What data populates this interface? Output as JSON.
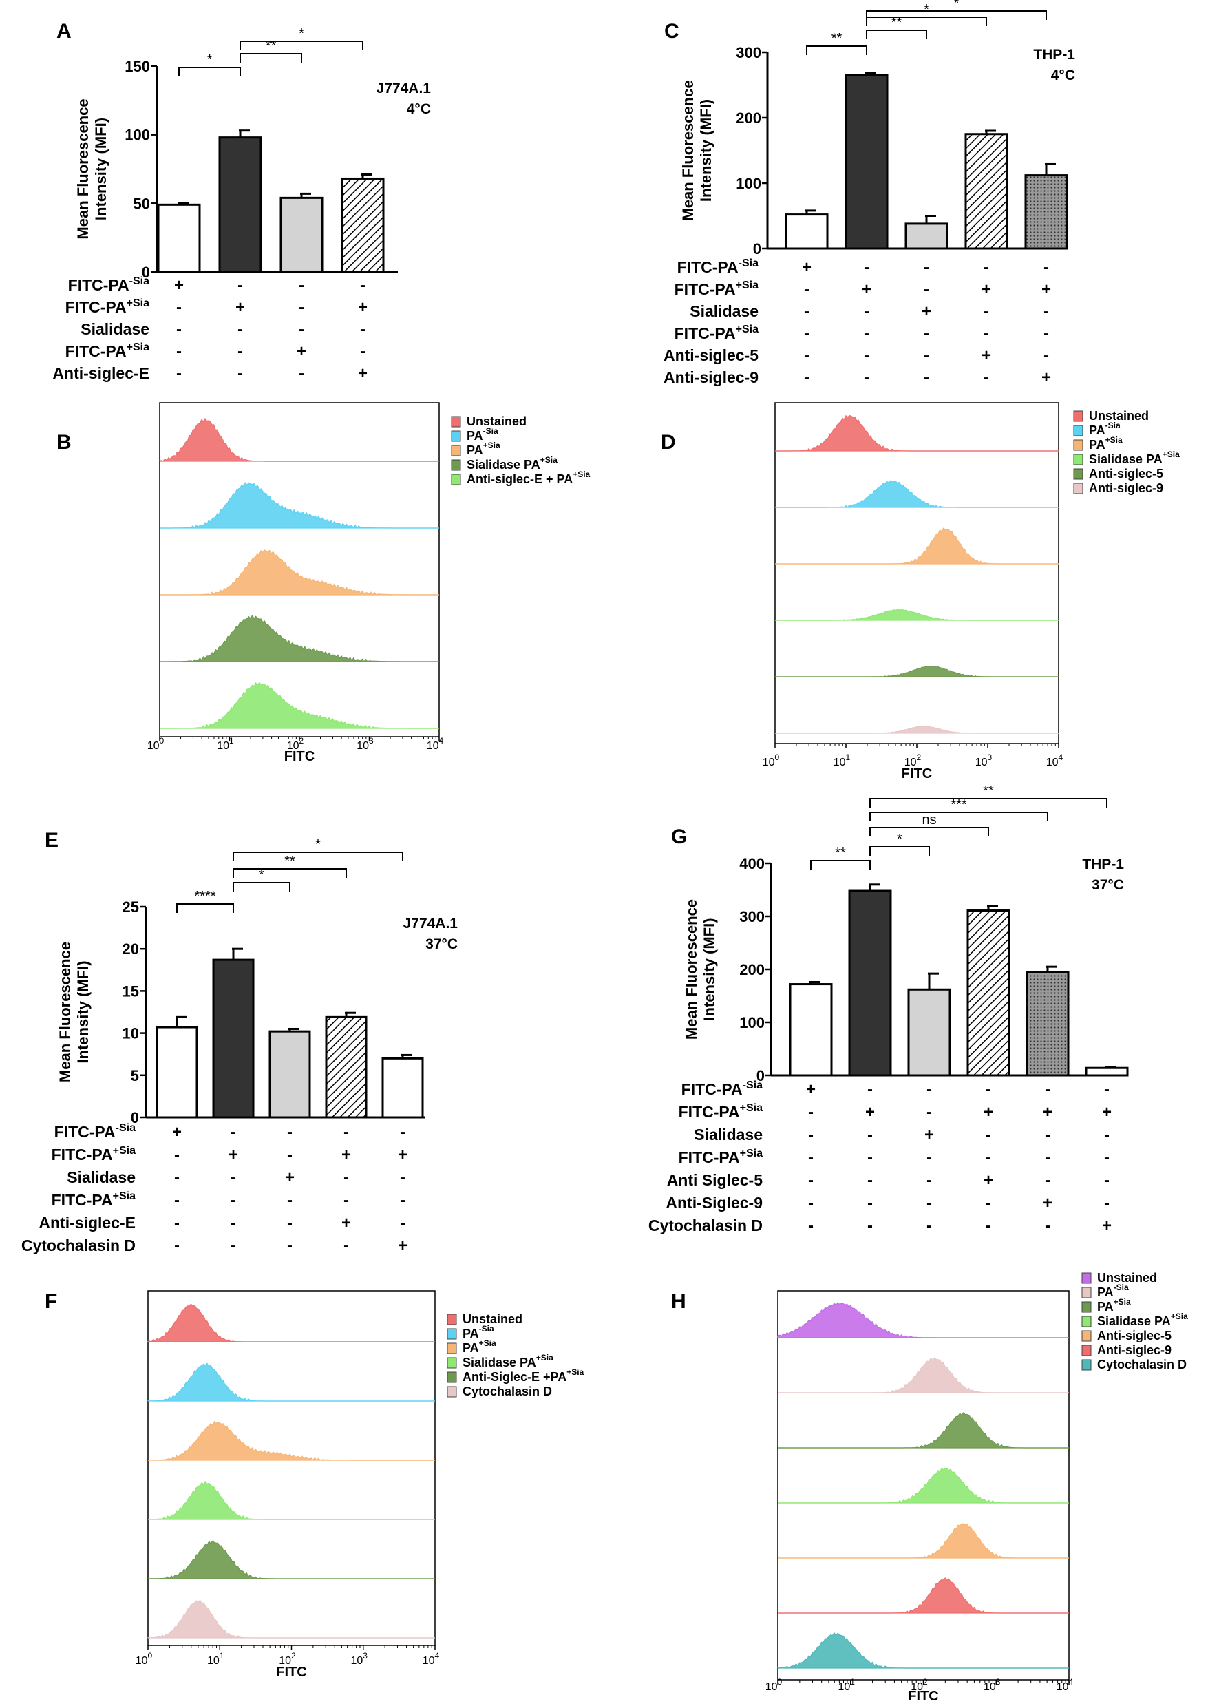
{
  "chart_data": [
    {
      "panel": "A",
      "type": "bar",
      "title_lines": [
        "J774A.1",
        "4°C"
      ],
      "ylabel": [
        "Mean Fluorescence",
        "Intensity (MFI)"
      ],
      "ylim": [
        0,
        150
      ],
      "yticks": [
        "0",
        "50",
        "100",
        "150"
      ],
      "values": [
        49,
        98,
        54,
        68
      ],
      "errors": [
        1,
        5,
        3,
        3
      ],
      "fills": [
        "white",
        "dark",
        "light",
        "hatch"
      ],
      "sig": [
        {
          "from": 0,
          "to": 1,
          "label": "*"
        },
        {
          "from": 1,
          "to": 2,
          "label": "**"
        },
        {
          "from": 1,
          "to": 3,
          "label": "*"
        }
      ],
      "conditions": [
        {
          "main": "FITC-PA",
          "sup": "-Sia",
          "marks": [
            "+",
            "-",
            "-",
            "-"
          ]
        },
        {
          "main": "FITC-PA",
          "sup": "+Sia",
          "marks": [
            "-",
            "+",
            "-",
            "+"
          ]
        },
        {
          "main": "Sialidase",
          "sup": "",
          "marks": [
            "-",
            "-",
            "-",
            "-"
          ]
        },
        {
          "main": "FITC-PA",
          "sup": "+Sia",
          "marks": [
            "-",
            "-",
            "+",
            "-"
          ]
        },
        {
          "main": "Anti-siglec-E",
          "sup": "",
          "marks": [
            "-",
            "-",
            "-",
            "+"
          ]
        }
      ]
    },
    {
      "panel": "C",
      "type": "bar",
      "title_lines": [
        "THP-1",
        "4°C"
      ],
      "ylabel": [
        "Mean Fluorescence",
        "Intensity (MFI)"
      ],
      "ylim": [
        0,
        300
      ],
      "yticks": [
        "0",
        "100",
        "200",
        "300"
      ],
      "values": [
        52,
        265,
        38,
        175,
        112
      ],
      "errors": [
        6,
        3,
        12,
        5,
        17
      ],
      "fills": [
        "white",
        "dark",
        "light",
        "hatch",
        "dots"
      ],
      "sig": [
        {
          "from": 0,
          "to": 1,
          "label": "**"
        },
        {
          "from": 1,
          "to": 2,
          "label": "**"
        },
        {
          "from": 1,
          "to": 3,
          "label": "*"
        },
        {
          "from": 1,
          "to": 4,
          "label": "*"
        }
      ],
      "conditions": [
        {
          "main": "FITC-PA",
          "sup": "-Sia",
          "marks": [
            "+",
            "-",
            "-",
            "-",
            "-"
          ]
        },
        {
          "main": "FITC-PA",
          "sup": "+Sia",
          "marks": [
            "-",
            "+",
            "-",
            "+",
            "+"
          ]
        },
        {
          "main": "Sialidase",
          "sup": "",
          "marks": [
            "-",
            "-",
            "+",
            "-",
            "-"
          ]
        },
        {
          "main": "FITC-PA",
          "sup": "+Sia",
          "marks": [
            "-",
            "-",
            "-",
            "-",
            "-"
          ]
        },
        {
          "main": "Anti-siglec-5",
          "sup": "",
          "marks": [
            "-",
            "-",
            "-",
            "+",
            "-"
          ]
        },
        {
          "main": "Anti-siglec-9",
          "sup": "",
          "marks": [
            "-",
            "-",
            "-",
            "-",
            "+"
          ]
        }
      ]
    },
    {
      "panel": "E",
      "type": "bar",
      "title_lines": [
        "J774A.1",
        "37°C"
      ],
      "ylabel": [
        "Mean Fluorescence",
        "Intensity (MFI)"
      ],
      "ylim": [
        0,
        25
      ],
      "yticks": [
        "0",
        "5",
        "10",
        "15",
        "20",
        "25"
      ],
      "values": [
        10.7,
        18.7,
        10.2,
        11.9,
        7.0
      ],
      "errors": [
        1.2,
        1.3,
        0.3,
        0.5,
        0.4
      ],
      "fills": [
        "white",
        "dark",
        "light",
        "hatch",
        "white"
      ],
      "sig": [
        {
          "from": 0,
          "to": 1,
          "label": "****"
        },
        {
          "from": 1,
          "to": 2,
          "label": "*"
        },
        {
          "from": 1,
          "to": 3,
          "label": "**"
        },
        {
          "from": 1,
          "to": 4,
          "label": "*"
        }
      ],
      "conditions": [
        {
          "main": "FITC-PA",
          "sup": "-Sia",
          "marks": [
            "+",
            "-",
            "-",
            "-",
            "-"
          ]
        },
        {
          "main": "FITC-PA",
          "sup": "+Sia",
          "marks": [
            "-",
            "+",
            "-",
            "+",
            "+"
          ]
        },
        {
          "main": "Sialidase",
          "sup": "",
          "marks": [
            "-",
            "-",
            "+",
            "-",
            "-"
          ]
        },
        {
          "main": "FITC-PA",
          "sup": "+Sia",
          "marks": [
            "-",
            "-",
            "-",
            "-",
            "-"
          ]
        },
        {
          "main": "Anti-siglec-E",
          "sup": "",
          "marks": [
            "-",
            "-",
            "-",
            "+",
            "-"
          ]
        },
        {
          "main": "Cytochalasin D",
          "sup": "",
          "marks": [
            "-",
            "-",
            "-",
            "-",
            "+"
          ]
        }
      ]
    },
    {
      "panel": "G",
      "type": "bar",
      "title_lines": [
        "THP-1",
        "37°C"
      ],
      "ylabel": [
        "Mean Fluorescence",
        "Intensity (MFI)"
      ],
      "ylim": [
        0,
        400
      ],
      "yticks": [
        "0",
        "100",
        "200",
        "300",
        "400"
      ],
      "values": [
        172,
        348,
        162,
        311,
        195,
        14
      ],
      "errors": [
        4,
        12,
        30,
        9,
        10,
        2
      ],
      "fills": [
        "white",
        "dark",
        "light",
        "hatch",
        "dots",
        "white"
      ],
      "sig": [
        {
          "from": 0,
          "to": 1,
          "label": "**"
        },
        {
          "from": 1,
          "to": 2,
          "label": "*"
        },
        {
          "from": 1,
          "to": 3,
          "label": "ns"
        },
        {
          "from": 1,
          "to": 4,
          "label": "***"
        },
        {
          "from": 1,
          "to": 5,
          "label": "**"
        }
      ],
      "conditions": [
        {
          "main": "FITC-PA",
          "sup": "-Sia",
          "marks": [
            "+",
            "-",
            "-",
            "-",
            "-",
            "-"
          ]
        },
        {
          "main": "FITC-PA",
          "sup": "+Sia",
          "marks": [
            "-",
            "+",
            "-",
            "+",
            "+",
            "+"
          ]
        },
        {
          "main": "Sialidase",
          "sup": "",
          "marks": [
            "-",
            "-",
            "+",
            "-",
            "-",
            "-"
          ]
        },
        {
          "main": "FITC-PA",
          "sup": "+Sia",
          "marks": [
            "-",
            "-",
            "-",
            "-",
            "-",
            "-"
          ]
        },
        {
          "main": "Anti Siglec-5",
          "sup": "",
          "marks": [
            "-",
            "-",
            "-",
            "+",
            "-",
            "-"
          ]
        },
        {
          "main": "Anti-Siglec-9",
          "sup": "",
          "marks": [
            "-",
            "-",
            "-",
            "-",
            "+",
            "-"
          ]
        },
        {
          "main": "Cytochalasin D",
          "sup": "",
          "marks": [
            "-",
            "-",
            "-",
            "-",
            "-",
            "+"
          ]
        }
      ]
    },
    {
      "panel": "B",
      "type": "histogram-overlay",
      "xlabel": "FITC",
      "xscale": "log",
      "xlim": [
        1,
        10000
      ],
      "xticks": [
        {
          "b": "10",
          "e": "0"
        },
        {
          "b": "10",
          "e": "1"
        },
        {
          "b": "10",
          "e": "2"
        },
        {
          "b": "10",
          "e": "3"
        },
        {
          "b": "10",
          "e": "4"
        }
      ],
      "legend": [
        {
          "main": "Unstained",
          "sup": "",
          "color": "#f06e6e"
        },
        {
          "main": "PA",
          "sup": "-Sia",
          "color": "#5cd2f2"
        },
        {
          "main": "PA",
          "sup": "+Sia",
          "color": "#f7b574"
        },
        {
          "main": "Sialidase PA",
          "sup": "+Sia",
          "color": "#6e9a4e"
        },
        {
          "main": "Anti-siglec-E + PA",
          "sup": "+Sia",
          "color": "#8ee872"
        }
      ],
      "tracks": [
        {
          "color": "#f06e6e",
          "peak_log": 0.65,
          "width": 0.22,
          "shoulder": 0
        },
        {
          "color": "#5cd2f2",
          "peak_log": 1.25,
          "width": 0.28,
          "shoulder": 0.35
        },
        {
          "color": "#f7b574",
          "peak_log": 1.5,
          "width": 0.28,
          "shoulder": 0.3
        },
        {
          "color": "#6e9a4e",
          "peak_log": 1.3,
          "width": 0.3,
          "shoulder": 0.3
        },
        {
          "color": "#8ee872",
          "peak_log": 1.4,
          "width": 0.3,
          "shoulder": 0.3
        }
      ]
    },
    {
      "panel": "D",
      "type": "histogram-overlay",
      "xlabel": "FITC",
      "xscale": "log",
      "xlim": [
        1,
        10000
      ],
      "xticks": [
        {
          "b": "10",
          "e": "0"
        },
        {
          "b": "10",
          "e": "1"
        },
        {
          "b": "10",
          "e": "2"
        },
        {
          "b": "10",
          "e": "3"
        },
        {
          "b": "10",
          "e": "4"
        }
      ],
      "legend": [
        {
          "main": "Unstained",
          "sup": "",
          "color": "#f06e6e"
        },
        {
          "main": "PA",
          "sup": "-Sia",
          "color": "#5cd2f2"
        },
        {
          "main": "PA",
          "sup": "+Sia",
          "color": "#f7b574"
        },
        {
          "main": "Sialidase PA",
          "sup": "+Sia",
          "color": "#8ee872"
        },
        {
          "main": "Anti-siglec-5",
          "sup": "",
          "color": "#6e9a4e"
        },
        {
          "main": "Anti-siglec-9",
          "sup": "",
          "color": "#e8c7c7"
        }
      ],
      "tracks": [
        {
          "color": "#f06e6e",
          "peak_log": 1.05,
          "width": 0.22,
          "shoulder": 0,
          "amp": 1.0
        },
        {
          "color": "#5cd2f2",
          "peak_log": 1.65,
          "width": 0.25,
          "shoulder": 0,
          "amp": 0.75
        },
        {
          "color": "#f7b574",
          "peak_log": 2.4,
          "width": 0.2,
          "shoulder": 0,
          "amp": 1.0
        },
        {
          "color": "#8ee872",
          "peak_log": 1.75,
          "width": 0.28,
          "shoulder": 0,
          "amp": 0.3
        },
        {
          "color": "#6e9a4e",
          "peak_log": 2.2,
          "width": 0.25,
          "shoulder": 0,
          "amp": 0.3
        },
        {
          "color": "#e8c7c7",
          "peak_log": 2.1,
          "width": 0.22,
          "shoulder": 0,
          "amp": 0.2
        }
      ]
    },
    {
      "panel": "F",
      "type": "histogram-overlay",
      "xlabel": "FITC",
      "xscale": "log",
      "xlim": [
        1,
        10000
      ],
      "xticks": [
        {
          "b": "10",
          "e": "0"
        },
        {
          "b": "10",
          "e": "1"
        },
        {
          "b": "10",
          "e": "2"
        },
        {
          "b": "10",
          "e": "3"
        },
        {
          "b": "10",
          "e": "4"
        }
      ],
      "legend": [
        {
          "main": "Unstained",
          "sup": "",
          "color": "#f06e6e"
        },
        {
          "main": "PA",
          "sup": "-Sia",
          "color": "#5cd2f2"
        },
        {
          "main": "PA",
          "sup": "+Sia",
          "color": "#f7b574"
        },
        {
          "main": "Sialidase PA",
          "sup": "+Sia",
          "color": "#8ee872"
        },
        {
          "main": "Anti-Siglec-E +PA",
          "sup": "+Sia",
          "color": "#6e9a4e"
        },
        {
          "main": "Cytochalasin D",
          "sup": "",
          "color": "#e8c7c7"
        }
      ],
      "tracks": [
        {
          "color": "#f06e6e",
          "peak_log": 0.6,
          "width": 0.2,
          "shoulder": 0
        },
        {
          "color": "#5cd2f2",
          "peak_log": 0.8,
          "width": 0.22,
          "shoulder": 0
        },
        {
          "color": "#f7b574",
          "peak_log": 0.95,
          "width": 0.25,
          "shoulder": 0.2
        },
        {
          "color": "#8ee872",
          "peak_log": 0.8,
          "width": 0.22,
          "shoulder": 0
        },
        {
          "color": "#6e9a4e",
          "peak_log": 0.9,
          "width": 0.23,
          "shoulder": 0
        },
        {
          "color": "#e8c7c7",
          "peak_log": 0.7,
          "width": 0.2,
          "shoulder": 0
        }
      ]
    },
    {
      "panel": "H",
      "type": "histogram-overlay",
      "xlabel": "FITC",
      "xscale": "log",
      "xlim": [
        1,
        10000
      ],
      "xticks": [
        {
          "b": "10",
          "e": "0"
        },
        {
          "b": "10",
          "e": "1"
        },
        {
          "b": "10",
          "e": "2"
        },
        {
          "b": "10",
          "e": "3"
        },
        {
          "b": "10",
          "e": "4"
        }
      ],
      "legend": [
        {
          "main": "Unstained",
          "sup": "",
          "color": "#c36ee8"
        },
        {
          "main": "PA",
          "sup": "-Sia",
          "color": "#e8c7c7"
        },
        {
          "main": "PA",
          "sup": "+Sia",
          "color": "#6e9a4e"
        },
        {
          "main": "Sialidase PA",
          "sup": "+Sia",
          "color": "#8ee872"
        },
        {
          "main": "Anti-siglec-5",
          "sup": "",
          "color": "#f7b574"
        },
        {
          "main": "Anti-siglec-9",
          "sup": "",
          "color": "#f06e6e"
        },
        {
          "main": "Cytochalasin D",
          "sup": "",
          "color": "#4fb8b8"
        }
      ],
      "tracks": [
        {
          "color": "#c36ee8",
          "peak_log": 0.85,
          "width": 0.35,
          "shoulder": 0
        },
        {
          "color": "#e8c7c7",
          "peak_log": 2.15,
          "width": 0.22,
          "shoulder": 0
        },
        {
          "color": "#6e9a4e",
          "peak_log": 2.55,
          "width": 0.22,
          "shoulder": 0
        },
        {
          "color": "#8ee872",
          "peak_log": 2.3,
          "width": 0.24,
          "shoulder": 0
        },
        {
          "color": "#f7b574",
          "peak_log": 2.55,
          "width": 0.2,
          "shoulder": 0
        },
        {
          "color": "#f06e6e",
          "peak_log": 2.3,
          "width": 0.2,
          "shoulder": 0
        },
        {
          "color": "#4fb8b8",
          "peak_log": 0.8,
          "width": 0.25,
          "shoulder": 0
        }
      ]
    }
  ]
}
